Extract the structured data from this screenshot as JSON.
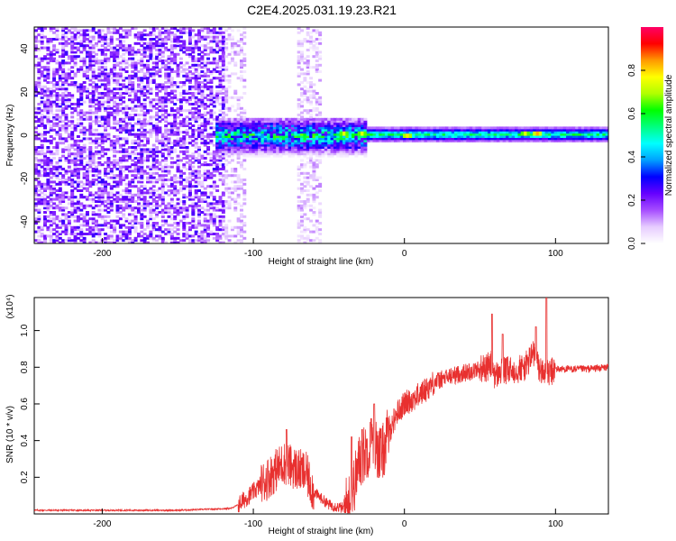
{
  "title": "C2E4.2025.031.19.23.R21",
  "chart_data": [
    {
      "type": "heatmap",
      "title": "C2E4.2025.031.19.23.R21",
      "xlabel": "Height of straight line (km)",
      "ylabel": "Frequency (Hz)",
      "xlim": [
        -245,
        135
      ],
      "ylim": [
        -50,
        50
      ],
      "x_ticks": [
        "-200",
        "-100",
        "0",
        "100"
      ],
      "y_ticks": [
        "-40",
        "-20",
        "0",
        "20",
        "40"
      ],
      "colorbar": {
        "label": "Normalized spectral amplitude",
        "range": [
          0,
          1
        ],
        "ticks": [
          "0.0",
          "0.2",
          "0.4",
          "0.6",
          "0.8"
        ],
        "colormap": [
          "#ffffff",
          "#e6ccff",
          "#a64dff",
          "#6600ff",
          "#0000ff",
          "#00a0ff",
          "#00ffff",
          "#00ff80",
          "#00ff00",
          "#b0ff00",
          "#ffff00",
          "#ff9900",
          "#ff0000",
          "#ff0066"
        ]
      },
      "regions": [
        {
          "x_range": [
            -245,
            -120
          ],
          "freq_range": [
            -50,
            50
          ],
          "amplitude": 0.15,
          "note_type": "broadband noise"
        },
        {
          "x_range": [
            -120,
            -105
          ],
          "freq_range": [
            -50,
            50
          ],
          "amplitude": 0.1,
          "note_type": "sparse noise"
        },
        {
          "x_range": [
            -70,
            -55
          ],
          "freq_range": [
            -50,
            50
          ],
          "amplitude": 0.05,
          "note_type": "faint column"
        },
        {
          "x_range": [
            -125,
            -25
          ],
          "freq_range": [
            -10,
            8
          ],
          "amplitude": 0.5,
          "note_type": "signal"
        },
        {
          "x_range": [
            -25,
            135
          ],
          "freq_range": [
            -3,
            4
          ],
          "amplitude": 0.6,
          "note_type": "carrier"
        }
      ],
      "peaks": [
        {
          "x": -40,
          "freq": 1,
          "amplitude": 0.85
        },
        {
          "x": -28,
          "freq": 1,
          "amplitude": 0.85
        },
        {
          "x": 2,
          "freq": 0,
          "amplitude": 0.9
        },
        {
          "x": 80,
          "freq": 1,
          "amplitude": 0.85
        },
        {
          "x": 88,
          "freq": 1,
          "amplitude": 0.95
        }
      ]
    },
    {
      "type": "line",
      "xlabel": "Height of straight line (km)",
      "ylabel": "SNR (10 * v/v)",
      "y_multiplier": "(x10⁴)",
      "xlim": [
        -245,
        135
      ],
      "ylim": [
        0,
        1.18
      ],
      "x_ticks": [
        "-200",
        "-100",
        "0",
        "100"
      ],
      "y_ticks": [
        "0.2",
        "0.4",
        "0.6",
        "0.8",
        "1.0"
      ],
      "series": [
        {
          "color": "#e8302f",
          "x": [
            -245,
            -200,
            -150,
            -115,
            -110,
            -100,
            -90,
            -80,
            -70,
            -65,
            -60,
            -50,
            -40,
            -35,
            -30,
            -25,
            -20,
            -15,
            -10,
            -5,
            0,
            10,
            20,
            30,
            40,
            50,
            55,
            58,
            60,
            65,
            70,
            80,
            85,
            88,
            90,
            95,
            100,
            110,
            120,
            135
          ],
          "values": [
            0.02,
            0.02,
            0.02,
            0.03,
            0.05,
            0.12,
            0.2,
            0.28,
            0.24,
            0.22,
            0.12,
            0.05,
            0.03,
            0.1,
            0.28,
            0.35,
            0.38,
            0.32,
            0.45,
            0.55,
            0.6,
            0.65,
            0.72,
            0.75,
            0.77,
            0.79,
            0.8,
            0.82,
            0.75,
            0.78,
            0.78,
            0.8,
            0.88,
            0.82,
            0.78,
            0.76,
            0.79,
            0.79,
            0.79,
            0.8
          ],
          "spikes": [
            {
              "x": -78,
              "value": 0.46
            },
            {
              "x": -35,
              "value": 0.42
            },
            {
              "x": -28,
              "value": 0.46
            },
            {
              "x": -22,
              "value": 0.52
            },
            {
              "x": -20,
              "value": 0.6
            },
            {
              "x": 58,
              "value": 1.09
            },
            {
              "x": 65,
              "value": 0.98
            },
            {
              "x": 87,
              "value": 1.02
            },
            {
              "x": 94,
              "value": 1.18
            }
          ]
        }
      ]
    }
  ]
}
